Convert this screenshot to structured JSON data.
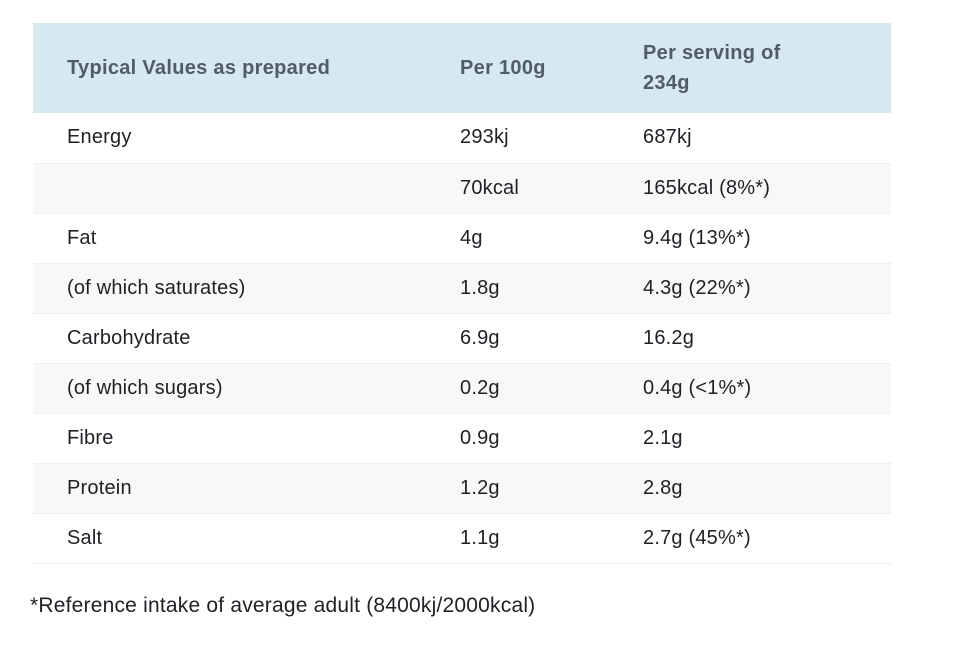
{
  "colors": {
    "header_bg": "#d7e8f1",
    "header_text": "#4e5d68",
    "body_text": "#1d2125",
    "stripe_bg": "#f8f8f8",
    "row_border": "#eeeeee",
    "page_bg": "#ffffff"
  },
  "table": {
    "columns": [
      "Typical Values as prepared",
      "Per 100g",
      "Per serving of 234g"
    ],
    "rows": [
      {
        "label": "Energy",
        "per100g": "293kj",
        "perServing": "687kj"
      },
      {
        "label": "",
        "per100g": "70kcal",
        "perServing": "165kcal (8%*)"
      },
      {
        "label": "Fat",
        "per100g": "4g",
        "perServing": "9.4g (13%*)"
      },
      {
        "label": "(of which saturates)",
        "per100g": "1.8g",
        "perServing": "4.3g (22%*)"
      },
      {
        "label": "Carbohydrate",
        "per100g": "6.9g",
        "perServing": "16.2g"
      },
      {
        "label": "(of which sugars)",
        "per100g": "0.2g",
        "perServing": "0.4g (<1%*)"
      },
      {
        "label": "Fibre",
        "per100g": "0.9g",
        "perServing": "2.1g"
      },
      {
        "label": "Protein",
        "per100g": "1.2g",
        "perServing": "2.8g"
      },
      {
        "label": "Salt",
        "per100g": "1.1g",
        "perServing": "2.7g (45%*)"
      }
    ]
  },
  "footnote": "*Reference intake of average adult (8400kj/2000kcal)"
}
